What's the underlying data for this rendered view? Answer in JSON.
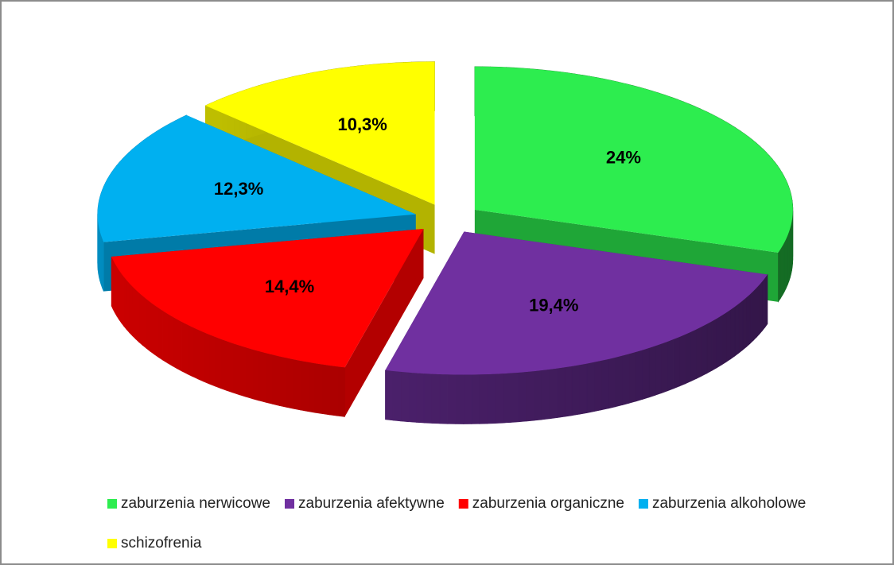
{
  "chart_data": {
    "type": "pie3d",
    "categories": [
      "zaburzenia nerwicowe",
      "zaburzenia afektywne",
      "zaburzenia organiczne",
      "zaburzenia alkoholowe",
      "schizofrenia"
    ],
    "values": [
      24,
      19.4,
      14.4,
      12.3,
      10.3
    ],
    "value_labels": [
      "24%",
      "19,4%",
      "14,4%",
      "12,3%",
      "10,3%"
    ],
    "colors": [
      "#2ded4f",
      "#7030a0",
      "#ff0000",
      "#00b0f0",
      "#ffff00"
    ],
    "legend": "bottom"
  }
}
